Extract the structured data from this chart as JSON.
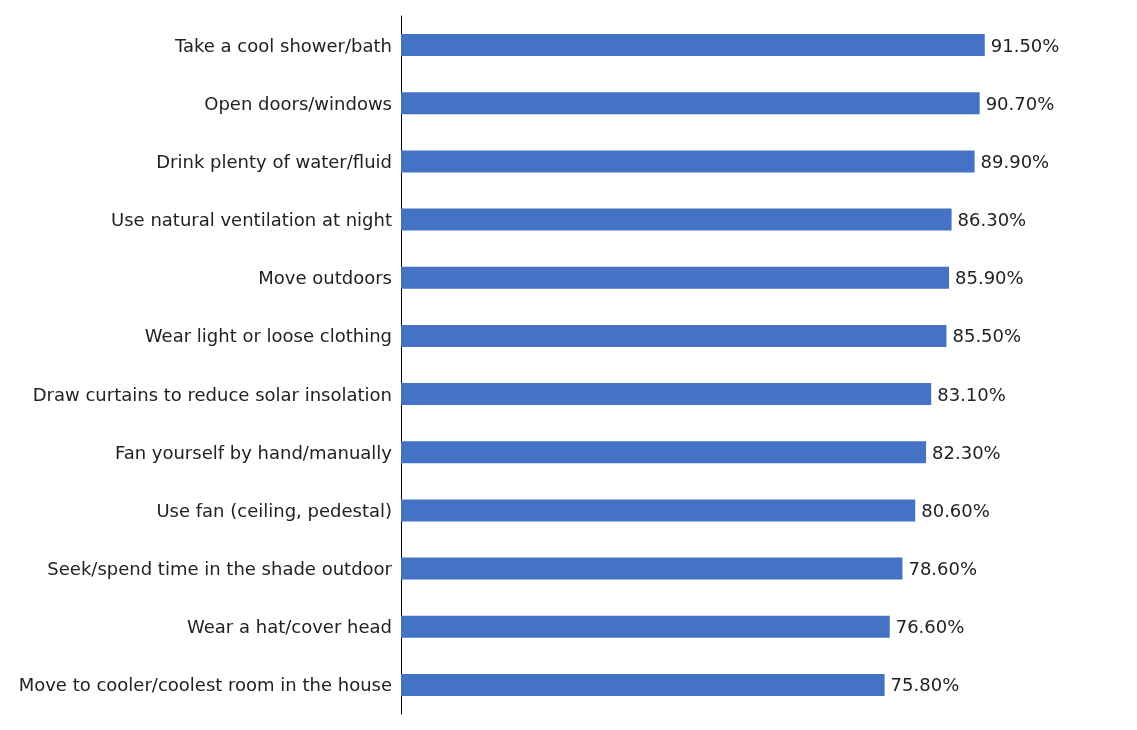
{
  "chart_data": {
    "type": "bar",
    "orientation": "horizontal",
    "categories": [
      "Take a cool shower/bath",
      "Open doors/windows",
      "Drink plenty of water/fluid",
      "Use natural ventilation at night",
      "Move outdoors",
      "Wear light or loose clothing",
      "Draw curtains to reduce solar insolation",
      "Fan yourself by hand/manually",
      "Use fan (ceiling, pedestal)",
      "Seek/spend time in the shade outdoor",
      "Wear a hat/cover head",
      "Move to cooler/coolest room in the house"
    ],
    "values": [
      91.5,
      90.7,
      89.9,
      86.3,
      85.9,
      85.5,
      83.1,
      82.3,
      80.6,
      78.6,
      76.6,
      75.8
    ],
    "value_labels": [
      "91.50%",
      "90.70%",
      "89.90%",
      "86.30%",
      "85.90%",
      "85.50%",
      "83.10%",
      "82.30%",
      "80.60%",
      "78.60%",
      "76.60%",
      "75.80%"
    ],
    "color": "#4472c4",
    "tick_labels": "y"
  }
}
